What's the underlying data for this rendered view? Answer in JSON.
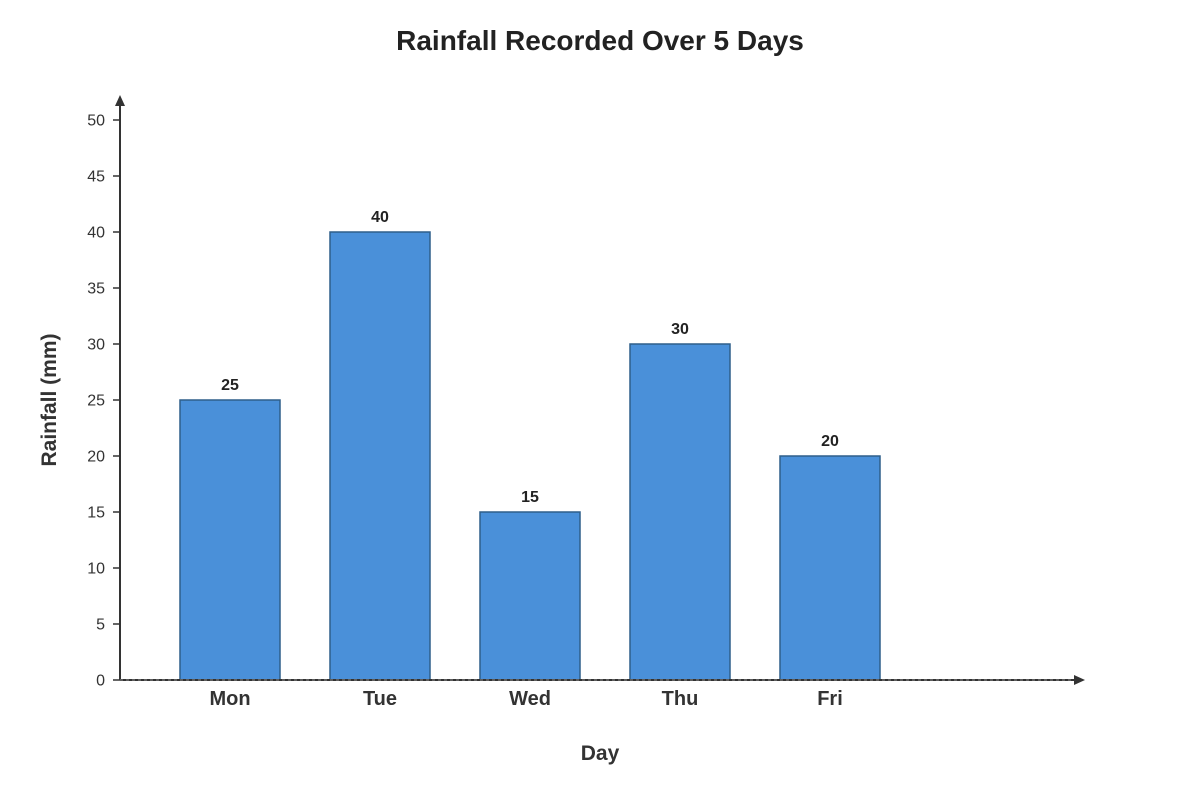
{
  "chart_data": {
    "type": "bar",
    "title": "Rainfall Recorded Over 5 Days",
    "xlabel": "Day",
    "ylabel": "Rainfall (mm)",
    "categories": [
      "Mon",
      "Tue",
      "Wed",
      "Thu",
      "Fri"
    ],
    "values": [
      25,
      40,
      15,
      30,
      20
    ],
    "ylim": [
      0,
      50
    ],
    "yticks": [
      0,
      5,
      10,
      15,
      20,
      25,
      30,
      35,
      40,
      45,
      50
    ],
    "grid": false,
    "data_labels": true,
    "bar_color": "#4a90d9",
    "bar_edge_color": "#2e5f8a",
    "axis_color": "#333333"
  }
}
